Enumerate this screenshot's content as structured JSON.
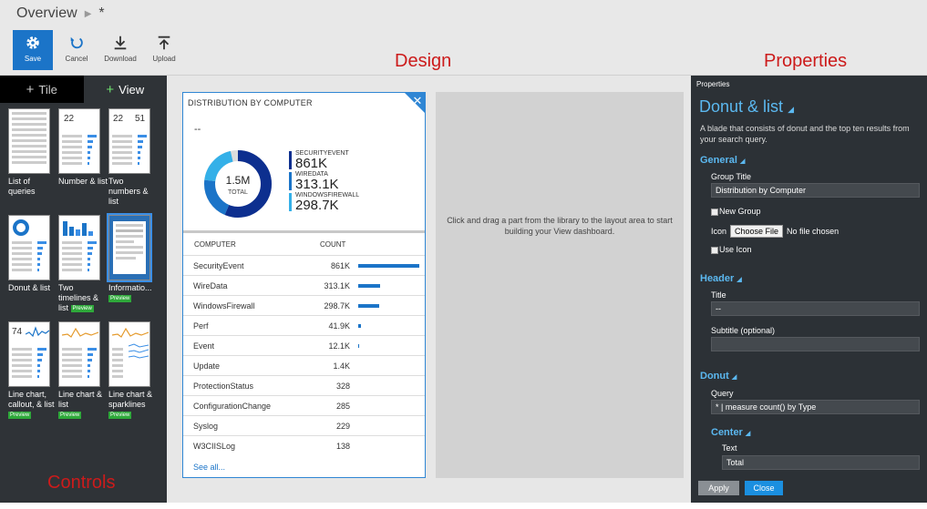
{
  "breadcrumb": {
    "root": "Overview",
    "current": "*"
  },
  "toolbar": {
    "save": "Save",
    "cancel": "Cancel",
    "download": "Download",
    "upload": "Upload"
  },
  "labels": {
    "design": "Design",
    "properties": "Properties",
    "controls": "Controls"
  },
  "controls": {
    "tabs": {
      "tile": "Tile",
      "view": "View"
    },
    "tiles": [
      {
        "label": "List of queries",
        "preview": ""
      },
      {
        "label": "Number & list",
        "preview": "",
        "num": "22"
      },
      {
        "label": "Two numbers & list",
        "preview": "",
        "num": "22",
        "num2": "51"
      },
      {
        "label": "Donut & list",
        "preview": ""
      },
      {
        "label": "Two timelines & list",
        "preview": "Preview"
      },
      {
        "label": "Informatio...",
        "preview": "Preview"
      },
      {
        "label": "Line chart, callout, & list",
        "preview": "Preview",
        "num": "74"
      },
      {
        "label": "Line chart & list",
        "preview": "Preview"
      },
      {
        "label": "Line chart & sparklines",
        "preview": "Preview"
      }
    ]
  },
  "card": {
    "title": "DISTRIBUTION BY COMPUTER",
    "subtitle": "--",
    "donut_value": "1.5M",
    "donut_label": "TOTAL",
    "legend": [
      {
        "name": "SECURITYEVENT",
        "value": "861K",
        "color": "#0d2f8f"
      },
      {
        "name": "WIREDATA",
        "value": "313.1K",
        "color": "#1b74c8"
      },
      {
        "name": "WINDOWSFIREWALL",
        "value": "298.7K",
        "color": "#34b0e8"
      }
    ],
    "columns": {
      "computer": "COMPUTER",
      "count": "COUNT"
    },
    "rows": [
      {
        "name": "SecurityEvent",
        "count": "861K",
        "value": 861
      },
      {
        "name": "WireData",
        "count": "313.1K",
        "value": 313.1
      },
      {
        "name": "WindowsFirewall",
        "count": "298.7K",
        "value": 298.7
      },
      {
        "name": "Perf",
        "count": "41.9K",
        "value": 41.9
      },
      {
        "name": "Event",
        "count": "12.1K",
        "value": 12.1
      },
      {
        "name": "Update",
        "count": "1.4K",
        "value": 1.4
      },
      {
        "name": "ProtectionStatus",
        "count": "328",
        "value": 0.328
      },
      {
        "name": "ConfigurationChange",
        "count": "285",
        "value": 0.285
      },
      {
        "name": "Syslog",
        "count": "229",
        "value": 0.229
      },
      {
        "name": "W3CIISLog",
        "count": "138",
        "value": 0.138
      }
    ],
    "see_all": "See all..."
  },
  "dropzone": {
    "text": "Click and drag a part from the library to the layout area to start building your View dashboard."
  },
  "properties": {
    "header": "Properties",
    "title": "Donut & list",
    "description": "A blade that consists of donut and the top ten results from your search query.",
    "general": {
      "section": "General",
      "group_title_label": "Group Title",
      "group_title_value": "Distribution by Computer",
      "new_group": "New Group",
      "icon_label": "Icon",
      "choose_file": "Choose File",
      "no_file": "No file chosen",
      "use_icon": "Use Icon"
    },
    "header_section": {
      "section": "Header",
      "title_label": "Title",
      "title_value": "--",
      "subtitle_label": "Subtitle (optional)",
      "subtitle_value": ""
    },
    "donut": {
      "section": "Donut",
      "query_label": "Query",
      "query_value": "* | measure count() by Type",
      "center_section": "Center",
      "text_label": "Text",
      "text_value": "Total"
    },
    "apply": "Apply",
    "close": "Close"
  }
}
